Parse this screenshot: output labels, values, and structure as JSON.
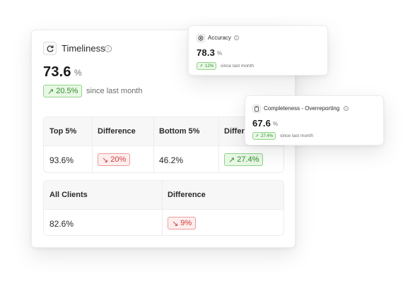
{
  "timeliness": {
    "title": "Timeliness",
    "value": "73.6",
    "unit": "%",
    "change": "20.5%",
    "change_direction": "up",
    "since_label": "since last month",
    "breakdown": {
      "headers": [
        "Top 5%",
        "Difference",
        "Bottom 5%",
        "Difference"
      ],
      "row": [
        {
          "value": "93.6%"
        },
        {
          "value": "20%",
          "direction": "down"
        },
        {
          "value": "46.2%"
        },
        {
          "value": "27.4%",
          "direction": "up"
        }
      ]
    },
    "clients": {
      "headers": [
        "All Clients",
        "Difference"
      ],
      "row": [
        {
          "value": "82.6%"
        },
        {
          "value": "9%",
          "direction": "down"
        }
      ]
    }
  },
  "accuracy": {
    "title": "Accuracy",
    "value": "78.3",
    "unit": "%",
    "change": "12%",
    "change_direction": "up",
    "since_label": "since last month"
  },
  "completeness": {
    "title": "Completeness - Overreporting",
    "value": "67.6",
    "unit": "%",
    "change": "27.4%",
    "change_direction": "up",
    "since_label": "since last month"
  },
  "icons": {
    "timeliness": "refresh-icon",
    "accuracy": "target-icon",
    "completeness": "clipboard-icon",
    "info": "info-icon",
    "up": "arrow-up-right-icon",
    "down": "arrow-down-right-icon"
  },
  "colors": {
    "positive_text": "#2f8f2a",
    "positive_bg": "#e9f8e6",
    "negative_text": "#d13a3a",
    "negative_bg": "#fdeeee"
  }
}
